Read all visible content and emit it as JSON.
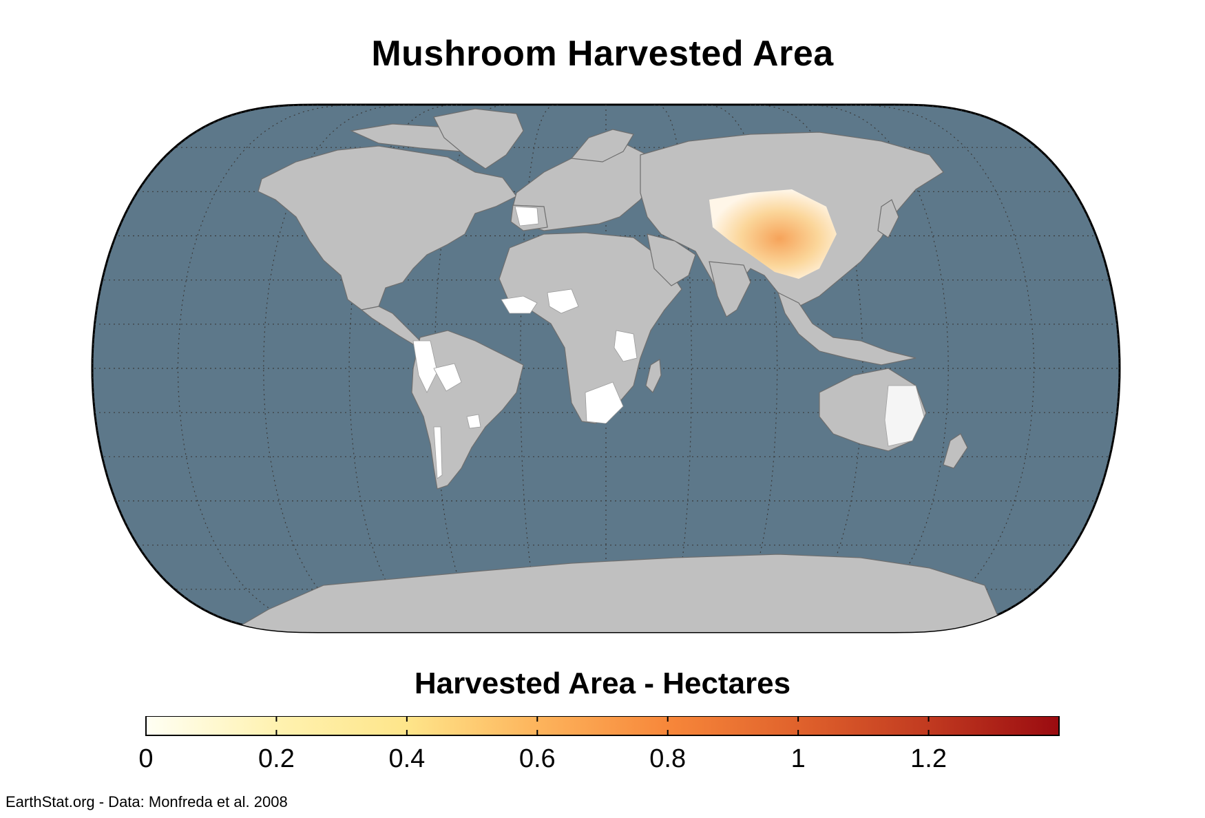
{
  "title": "Mushroom Harvested Area",
  "legend": {
    "title": "Harvested Area - Hectares",
    "ticks": [
      "0",
      "0.2",
      "0.4",
      "0.6",
      "0.8",
      "1",
      "1.2"
    ],
    "range": [
      0,
      1.4
    ],
    "colors": [
      "#fffff4",
      "#fff2b0",
      "#fee58a",
      "#fdb45c",
      "#f7873a",
      "#e0622c",
      "#c13a20",
      "#9a0b10"
    ]
  },
  "credit": "EarthStat.org - Data: Monfreda et al. 2008",
  "colors": {
    "ocean": "#5d788a",
    "land": "#c0c0c0",
    "border": "#000000",
    "graticule": "#3a3a3a",
    "low_value": "#ffffff",
    "high_value": "#f4a45c"
  }
}
